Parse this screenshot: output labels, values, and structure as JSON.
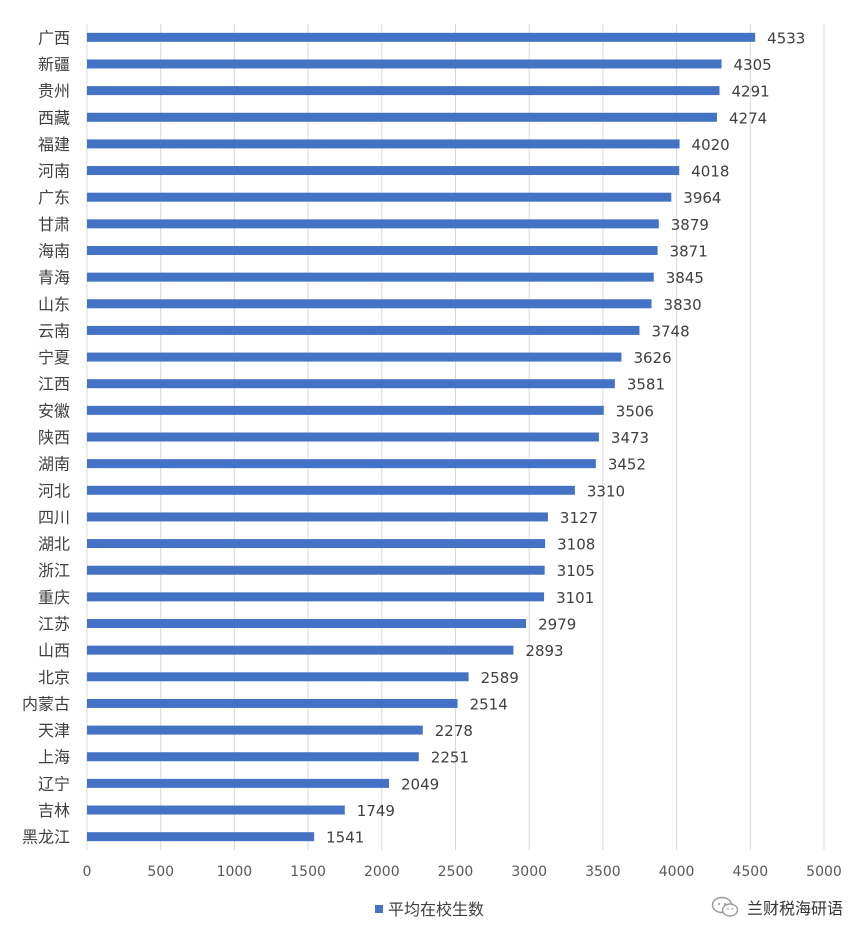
{
  "chart_data": {
    "type": "bar",
    "orientation": "horizontal",
    "categories": [
      "广西",
      "新疆",
      "贵州",
      "西藏",
      "福建",
      "河南",
      "广东",
      "甘肃",
      "海南",
      "青海",
      "山东",
      "云南",
      "宁夏",
      "江西",
      "安徽",
      "陕西",
      "湖南",
      "河北",
      "四川",
      "湖北",
      "浙江",
      "重庆",
      "江苏",
      "山西",
      "北京",
      "内蒙古",
      "天津",
      "上海",
      "辽宁",
      "吉林",
      "黑龙江"
    ],
    "series": [
      {
        "name": "平均在校生数",
        "values": [
          4533,
          4305,
          4291,
          4274,
          4020,
          4018,
          3964,
          3879,
          3871,
          3845,
          3830,
          3748,
          3626,
          3581,
          3506,
          3473,
          3452,
          3310,
          3127,
          3108,
          3105,
          3101,
          2979,
          2893,
          2589,
          2514,
          2278,
          2251,
          2049,
          1749,
          1541
        ]
      }
    ],
    "highlight_index": 7,
    "xlim": [
      0,
      5000
    ],
    "x_ticks": [
      0,
      500,
      1000,
      1500,
      2000,
      2500,
      3000,
      3500,
      4000,
      4500,
      5000
    ],
    "grid": true,
    "legend_position": "bottom",
    "colors": {
      "bar": "#4472C4",
      "highlight_label": "#FF0000",
      "grid": "#D9D9D9"
    }
  },
  "watermark": {
    "text": "兰财税海研语",
    "icon": "wechat-icon"
  }
}
